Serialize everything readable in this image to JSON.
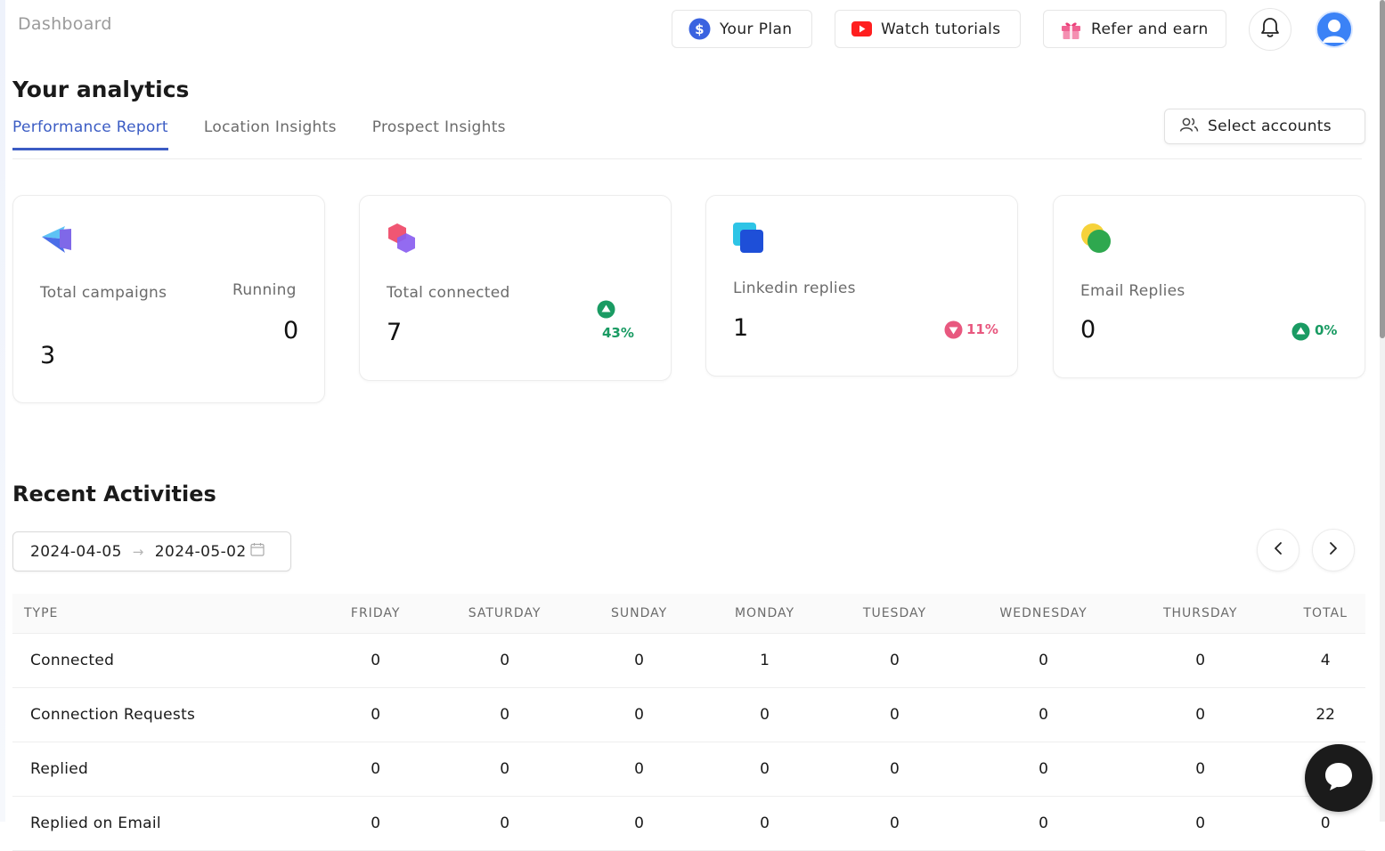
{
  "header": {
    "breadcrumb": "Dashboard",
    "your_plan": "Your Plan",
    "watch_tutorials": "Watch tutorials",
    "refer_and_earn": "Refer and earn"
  },
  "analytics": {
    "title": "Your analytics",
    "tabs": [
      {
        "label": "Performance Report",
        "active": true
      },
      {
        "label": "Location Insights",
        "active": false
      },
      {
        "label": "Prospect Insights",
        "active": false
      }
    ],
    "select_accounts": "Select accounts"
  },
  "cards": {
    "campaigns": {
      "label": "Total campaigns",
      "value": "3",
      "running_label": "Running",
      "running_value": "0"
    },
    "connected": {
      "label": "Total connected",
      "value": "7",
      "change": "43%",
      "trend": "up"
    },
    "linkedin": {
      "label": "Linkedin replies",
      "value": "1",
      "change": "11%",
      "trend": "down"
    },
    "email": {
      "label": "Email Replies",
      "value": "0",
      "change": "0%",
      "trend": "up"
    }
  },
  "recent": {
    "title": "Recent Activities",
    "date_start": "2024-04-05",
    "date_end": "2024-05-02",
    "columns": [
      "TYPE",
      "FRIDAY",
      "SATURDAY",
      "SUNDAY",
      "MONDAY",
      "TUESDAY",
      "WEDNESDAY",
      "THURSDAY",
      "TOTAL"
    ],
    "rows": [
      [
        "Connected",
        "0",
        "0",
        "0",
        "1",
        "0",
        "0",
        "0",
        "4"
      ],
      [
        "Connection Requests",
        "0",
        "0",
        "0",
        "0",
        "0",
        "0",
        "0",
        "22"
      ],
      [
        "Replied",
        "0",
        "0",
        "0",
        "0",
        "0",
        "0",
        "0",
        ""
      ],
      [
        "Replied on Email",
        "0",
        "0",
        "0",
        "0",
        "0",
        "0",
        "0",
        "0"
      ]
    ]
  },
  "colors": {
    "accent": "#3b5cc4",
    "up": "#1a9b63",
    "down": "#e8587f",
    "avatar": "#3b82f6"
  }
}
